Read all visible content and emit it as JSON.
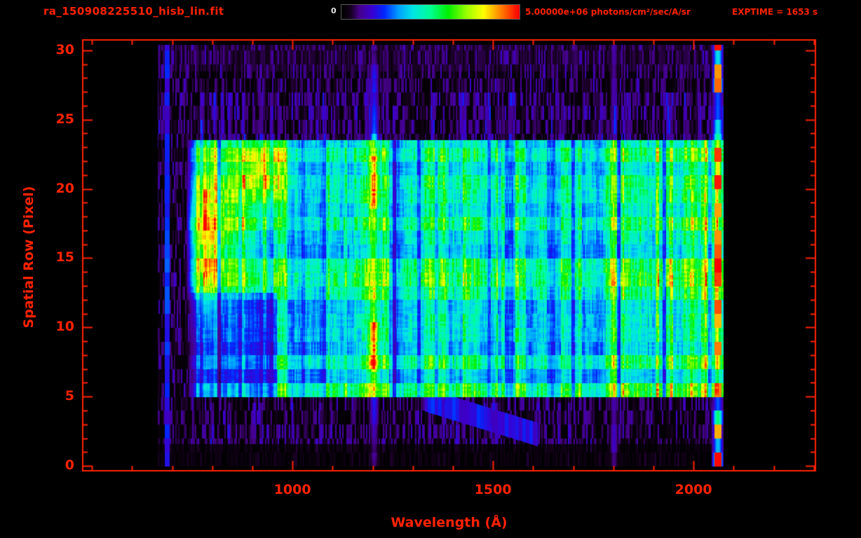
{
  "header": {
    "filename": "ra_150908225510_hisb_lin.fit",
    "colorbar_min": "0",
    "colorbar_max": "5.00000e+06 photons/cm²/sec/A/sr",
    "exptime": "EXPTIME = 1653 s"
  },
  "colors": {
    "axis_red": "#ff2200",
    "background": "#000000",
    "colorbar_zero_label": "#e6e6e6"
  },
  "chart_data": {
    "type": "heatmap",
    "title": "ra_150908225510_hisb_lin.fit",
    "xlabel": "Wavelength (Å)",
    "ylabel": "Spatial Row (Pixel)",
    "x_ticks": [
      1000,
      1500,
      2000
    ],
    "x_minor_step": 100,
    "y_ticks": [
      0,
      5,
      10,
      15,
      20,
      25,
      30
    ],
    "y_minor_step": 1,
    "x_range": [
      477,
      2304
    ],
    "y_range": [
      -0.35,
      30.75
    ],
    "grid": false,
    "legend": "none",
    "colorbar": {
      "min": 0,
      "max": 5000000,
      "units": "photons/cm²/sec/A/sr",
      "position": "top"
    },
    "exposure_seconds": 1653,
    "colormap": {
      "name": "rainbow",
      "stops": [
        [
          0,
          "#000000"
        ],
        [
          0.05,
          "#16001e"
        ],
        [
          0.1,
          "#46008c"
        ],
        [
          0.17,
          "#3a00d2"
        ],
        [
          0.24,
          "#0028ff"
        ],
        [
          0.32,
          "#00a0ff"
        ],
        [
          0.4,
          "#00e6e6"
        ],
        [
          0.5,
          "#00ff96"
        ],
        [
          0.6,
          "#00f000"
        ],
        [
          0.7,
          "#96ff00"
        ],
        [
          0.8,
          "#ffff00"
        ],
        [
          0.88,
          "#ff9600"
        ],
        [
          0.95,
          "#ff3c00"
        ],
        [
          1,
          "#ff0000"
        ]
      ]
    },
    "data_extent": {
      "wavelength": [
        663,
        2074
      ],
      "rows": [
        0,
        30.4
      ]
    },
    "features": [
      {
        "name": "main-band",
        "description": "cyan-green continuum band with horizontal row striping, rows 5-24",
        "x": [
          735,
          2074
        ],
        "rows": [
          5.0,
          23.55
        ],
        "intensity": 2000000,
        "right_intensity": 2900000,
        "right_ramp_start": 1700,
        "dim_lower_left": {
          "x_max": 960,
          "row_max": 12.5,
          "factor": 0.6
        }
      },
      {
        "name": "left-blob",
        "description": "bright green-yellow knot near 780-960 Å, rows 13-23",
        "components": [
          {
            "center": [
              782,
              16.7
            ],
            "sigma": [
              26,
              3.0
            ],
            "amp": 1600000
          },
          {
            "center": [
              928,
              21.4
            ],
            "sigma": [
              40,
              1.6
            ],
            "amp": 1700000
          },
          {
            "center": [
              830,
              18.5
            ],
            "sigma": [
              55,
              4.5
            ],
            "amp": 800000
          }
        ]
      },
      {
        "name": "lyman-alpha-line",
        "description": "bright vertical emission line with orange-red knots, full height",
        "x": [
          1188,
          1218
        ],
        "center": 1203,
        "sigma": 7.5,
        "band_amp": 1300000,
        "hot_spots": [
          {
            "rows": [
              6.8,
              10.4
            ],
            "amp": 2900000
          },
          {
            "rows": [
              18.6,
              22.4
            ],
            "amp": 2300000
          }
        ],
        "above_band_intensity": 1900000,
        "below_band_intensity": 1050000
      },
      {
        "name": "line-1800",
        "description": "faint secondary vertical emission line",
        "x": [
          1793,
          1813
        ],
        "center": 1801,
        "sigma": 6.5,
        "band_amp": 700000,
        "outside_intensity": 800000
      },
      {
        "name": "right-edge-glow",
        "description": "bright detector edge column with red knots",
        "x": [
          2045,
          2074
        ],
        "center": 2060,
        "sigma": 9,
        "band_intensity": 3200000,
        "outside_intensity": 2200000,
        "max_intensity": 5000000
      },
      {
        "name": "left-blue-line",
        "description": "faint blue vertical line near 686 Å, full height",
        "x": [
          681,
          693
        ],
        "intensity": 1000000
      },
      {
        "name": "diagonal-streak",
        "description": "faint blue diagonal streak at lower middle",
        "from": [
          1330,
          4.8
        ],
        "to": [
          1610,
          2.3
        ],
        "intensity": 1050000
      },
      {
        "name": "background-speckle",
        "description": "sparse purple-blue noise above row 24 and below row 5",
        "x": [
          663,
          2074
        ],
        "rows": [
          0,
          30.4
        ],
        "intensity_range": [
          100000,
          900000
        ]
      }
    ]
  }
}
